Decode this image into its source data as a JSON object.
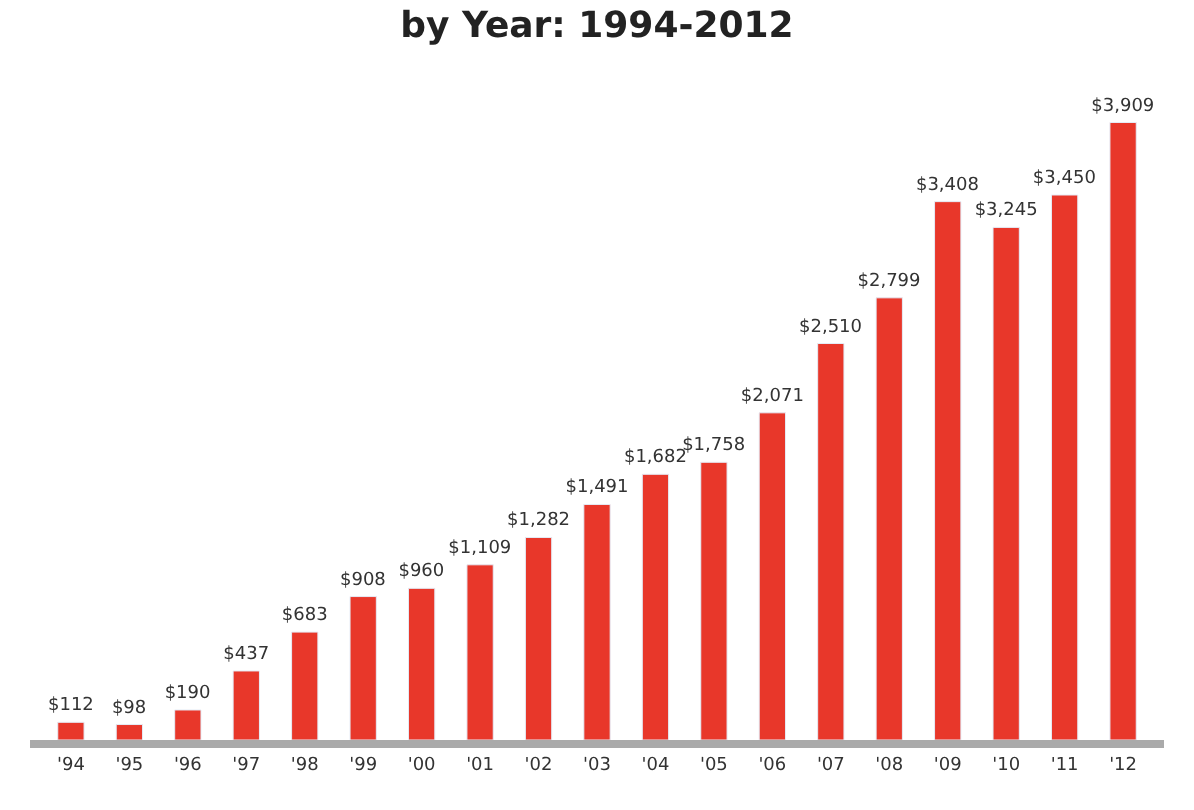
{
  "chart_data": {
    "type": "bar",
    "title": "by Year: 1994-2012",
    "categories": [
      "'94",
      "'95",
      "'96",
      "'97",
      "'98",
      "'99",
      "'00",
      "'01",
      "'02",
      "'03",
      "'04",
      "'05",
      "'06",
      "'07",
      "'08",
      "'09",
      "'10",
      "'11",
      "'12"
    ],
    "values": [
      112,
      98,
      190,
      437,
      683,
      908,
      960,
      1109,
      1282,
      1491,
      1682,
      1758,
      2071,
      2510,
      2799,
      3408,
      3245,
      3450,
      3909
    ],
    "value_labels": [
      "$112",
      "$98",
      "$190",
      "$437",
      "$683",
      "$908",
      "$960",
      "$1,109",
      "$1,282",
      "$1,491",
      "$1,682",
      "$1,758",
      "$2,071",
      "$2,510",
      "$2,799",
      "$3,408",
      "$3,245",
      "$3,450",
      "$3,909"
    ],
    "color": "#e8372a"
  }
}
